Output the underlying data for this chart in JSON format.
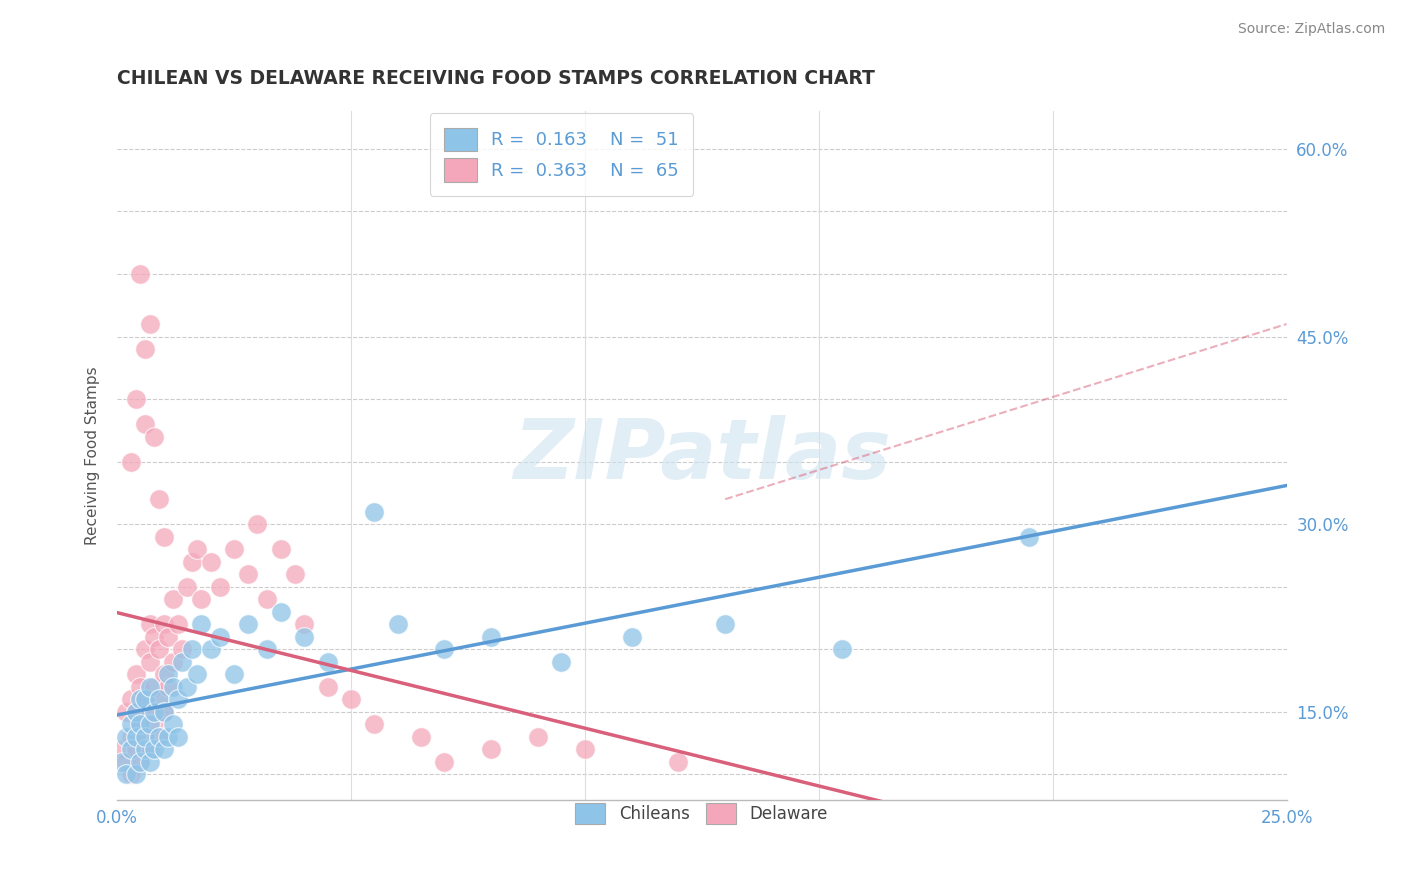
{
  "title": "CHILEAN VS DELAWARE RECEIVING FOOD STAMPS CORRELATION CHART",
  "source": "Source: ZipAtlas.com",
  "ylabel": "Receiving Food Stamps",
  "xlim": [
    0.0,
    0.25
  ],
  "ylim": [
    0.08,
    0.63
  ],
  "blue_R": 0.163,
  "blue_N": 51,
  "pink_R": 0.363,
  "pink_N": 65,
  "blue_color": "#8ec4e8",
  "pink_color": "#f4a7ba",
  "blue_line_color": "#5b9bd5",
  "pink_line_color": "#d9607a",
  "blue_line_dashed_color": "#aacce8",
  "watermark": "ZIPatlas",
  "legend_label_blue": "Chileans",
  "legend_label_pink": "Delaware",
  "blue_scatter_x": [
    0.001,
    0.002,
    0.002,
    0.003,
    0.003,
    0.004,
    0.004,
    0.004,
    0.005,
    0.005,
    0.005,
    0.006,
    0.006,
    0.006,
    0.007,
    0.007,
    0.007,
    0.008,
    0.008,
    0.009,
    0.009,
    0.01,
    0.01,
    0.011,
    0.011,
    0.012,
    0.012,
    0.013,
    0.013,
    0.014,
    0.015,
    0.016,
    0.017,
    0.018,
    0.02,
    0.022,
    0.025,
    0.028,
    0.032,
    0.035,
    0.04,
    0.045,
    0.055,
    0.06,
    0.07,
    0.08,
    0.095,
    0.11,
    0.13,
    0.155,
    0.195
  ],
  "blue_scatter_y": [
    0.11,
    0.1,
    0.13,
    0.12,
    0.14,
    0.1,
    0.13,
    0.15,
    0.11,
    0.14,
    0.16,
    0.12,
    0.13,
    0.16,
    0.11,
    0.14,
    0.17,
    0.12,
    0.15,
    0.13,
    0.16,
    0.12,
    0.15,
    0.13,
    0.18,
    0.14,
    0.17,
    0.13,
    0.16,
    0.19,
    0.17,
    0.2,
    0.18,
    0.22,
    0.2,
    0.21,
    0.18,
    0.22,
    0.2,
    0.23,
    0.21,
    0.19,
    0.31,
    0.22,
    0.2,
    0.21,
    0.19,
    0.21,
    0.22,
    0.2,
    0.29
  ],
  "pink_scatter_x": [
    0.001,
    0.002,
    0.002,
    0.003,
    0.003,
    0.003,
    0.004,
    0.004,
    0.004,
    0.005,
    0.005,
    0.005,
    0.006,
    0.006,
    0.006,
    0.007,
    0.007,
    0.007,
    0.007,
    0.008,
    0.008,
    0.008,
    0.009,
    0.009,
    0.009,
    0.01,
    0.01,
    0.01,
    0.011,
    0.011,
    0.012,
    0.012,
    0.013,
    0.014,
    0.015,
    0.016,
    0.017,
    0.018,
    0.02,
    0.022,
    0.025,
    0.028,
    0.03,
    0.032,
    0.035,
    0.038,
    0.04,
    0.045,
    0.05,
    0.055,
    0.065,
    0.07,
    0.08,
    0.09,
    0.1,
    0.12,
    0.003,
    0.004,
    0.005,
    0.006,
    0.006,
    0.007,
    0.008,
    0.009,
    0.01
  ],
  "pink_scatter_y": [
    0.12,
    0.11,
    0.15,
    0.1,
    0.13,
    0.16,
    0.12,
    0.15,
    0.18,
    0.11,
    0.14,
    0.17,
    0.13,
    0.16,
    0.2,
    0.12,
    0.15,
    0.19,
    0.22,
    0.14,
    0.17,
    0.21,
    0.13,
    0.16,
    0.2,
    0.15,
    0.18,
    0.22,
    0.17,
    0.21,
    0.19,
    0.24,
    0.22,
    0.2,
    0.25,
    0.27,
    0.28,
    0.24,
    0.27,
    0.25,
    0.28,
    0.26,
    0.3,
    0.24,
    0.28,
    0.26,
    0.22,
    0.17,
    0.16,
    0.14,
    0.13,
    0.11,
    0.12,
    0.13,
    0.12,
    0.11,
    0.35,
    0.4,
    0.5,
    0.44,
    0.38,
    0.46,
    0.37,
    0.32,
    0.29
  ],
  "xtick_positions": [
    0.0,
    0.25
  ],
  "xtick_labels": [
    "0.0%",
    "25.0%"
  ],
  "ytick_positions": [
    0.15,
    0.3,
    0.45,
    0.6
  ],
  "ytick_labels": [
    "15.0%",
    "30.0%",
    "45.0%",
    "60.0%"
  ],
  "grid_y": [
    0.1,
    0.15,
    0.2,
    0.25,
    0.3,
    0.35,
    0.4,
    0.45,
    0.5,
    0.55,
    0.6
  ],
  "vline_x": [
    0.05,
    0.1,
    0.15,
    0.2
  ]
}
